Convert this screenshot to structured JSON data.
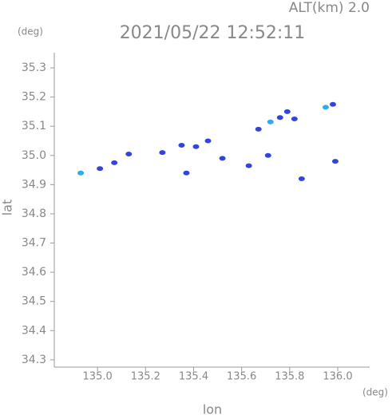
{
  "chart_data": {
    "type": "scatter",
    "title": "2021/05/22 12:52:11",
    "subtitle": "ALT(km) 2.0",
    "y_unit": "(deg)",
    "x_unit": "(deg)",
    "x_label": "lon",
    "y_label": "lat",
    "xlim": [
      134.82,
      136.133
    ],
    "ylim": [
      34.275,
      35.352
    ],
    "xticks": [
      {
        "value": 135,
        "label": "135.0"
      },
      135.2,
      135.4,
      135.6,
      135.8,
      {
        "value": 136,
        "label": "136.0"
      }
    ],
    "yticks": [
      34.3,
      34.4,
      34.5,
      34.6,
      34.7,
      34.8,
      34.9,
      {
        "value": 35,
        "label": "35.0"
      },
      35.1,
      35.2,
      35.3
    ],
    "x": [
      134.93,
      135.01,
      135.07,
      135.13,
      135.27,
      135.35,
      135.46,
      135.41,
      135.52,
      135.37,
      135.63,
      135.71,
      135.85,
      135.99,
      135.67,
      135.72,
      135.76,
      135.79,
      135.82,
      135.95,
      135.98
    ],
    "y": [
      34.94,
      34.955,
      34.975,
      35.005,
      35.01,
      35.035,
      35.05,
      35.03,
      34.99,
      34.94,
      34.965,
      35.0,
      34.92,
      34.98,
      35.09,
      35.115,
      35.13,
      35.15,
      35.125,
      35.165,
      35.175
    ],
    "point_colors": [
      "#33aaee",
      "#3344dd",
      "#3344dd",
      "#3344dd",
      "#3344dd",
      "#3344dd",
      "#3344dd",
      "#3344dd",
      "#3344dd",
      "#3344dd",
      "#3344dd",
      "#3344dd",
      "#3344dd",
      "#3344dd",
      "#3344dd",
      "#33aaee",
      "#3344dd",
      "#3344dd",
      "#3344dd",
      "#33aaee",
      "#3344dd"
    ]
  }
}
